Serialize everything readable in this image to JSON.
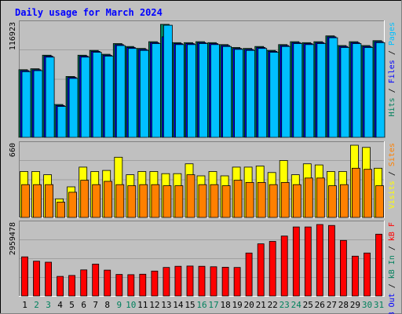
{
  "chart_data": {
    "type": "bar",
    "title": "Daily usage for March 2024",
    "categories": [
      "1",
      "2",
      "3",
      "4",
      "5",
      "6",
      "7",
      "8",
      "9",
      "10",
      "11",
      "12",
      "13",
      "14",
      "15",
      "16",
      "17",
      "18",
      "19",
      "20",
      "21",
      "22",
      "23",
      "24",
      "25",
      "26",
      "27",
      "28",
      "29",
      "30",
      "31"
    ],
    "weekend_days": [
      2,
      3,
      9,
      10,
      16,
      17,
      23,
      24,
      30,
      31
    ],
    "colors": {
      "title": "#0000ff",
      "hits": "#00805c",
      "files": "#0000ff",
      "pages": "#00c0ff",
      "visits": "#ffff00",
      "sites": "#ff8000",
      "kbin": "#00805c",
      "kbout": "#0000ff",
      "kbf": "#ff0000",
      "weekday_label": "#000000",
      "weekend_label": "#00805c"
    },
    "panels": [
      {
        "name": "hits-files-pages",
        "max_label": "116923",
        "ymax": 116923,
        "legend": [
          {
            "text": "Pages",
            "color": "#00c0ff"
          },
          {
            "text": " / ",
            "color": "#000000"
          },
          {
            "text": "Files",
            "color": "#0000ff"
          },
          {
            "text": " / ",
            "color": "#000000"
          },
          {
            "text": "Hits",
            "color": "#00805c"
          }
        ],
        "series": [
          {
            "name": "Hits",
            "color": "#00805c",
            "values": [
              70000,
              71000,
              85000,
              34000,
              63000,
              85000,
              90000,
              86000,
              97000,
              94000,
              92000,
              99000,
              116923,
              98000,
              98000,
              99000,
              98000,
              96000,
              93000,
              92000,
              94000,
              90000,
              96000,
              99000,
              98000,
              99000,
              105000,
              95000,
              99000,
              95000,
              100000
            ]
          },
          {
            "name": "Files",
            "color": "#0000ff",
            "values": [
              69000,
              70000,
              84000,
              33000,
              62000,
              84000,
              89000,
              85000,
              96000,
              93000,
              91000,
              98000,
              104000,
              97000,
              97000,
              98000,
              97000,
              95000,
              92000,
              91000,
              93000,
              89000,
              95000,
              98000,
              97000,
              98000,
              104000,
              94000,
              98000,
              94000,
              99000
            ]
          },
          {
            "name": "Pages",
            "color": "#00c0ff",
            "values": [
              68000,
              69000,
              83000,
              32000,
              61000,
              83000,
              88000,
              84000,
              95000,
              92000,
              90000,
              97000,
              116000,
              96000,
              96000,
              97000,
              96000,
              94000,
              91000,
              90000,
              92000,
              88000,
              94000,
              97000,
              96000,
              97000,
              103000,
              93000,
              97000,
              93000,
              98000
            ]
          }
        ]
      },
      {
        "name": "visits-sites",
        "max_label": "660",
        "ymax": 660,
        "legend": [
          {
            "text": "Sites",
            "color": "#ff8000"
          },
          {
            "text": " / ",
            "color": "#000000"
          },
          {
            "text": "Visits",
            "color": "#ffff00"
          }
        ],
        "series": [
          {
            "name": "Visits",
            "color": "#ffff00",
            "values": [
              420,
              420,
              390,
              170,
              280,
              460,
              420,
              430,
              550,
              390,
              420,
              420,
              400,
              400,
              490,
              380,
              420,
              380,
              460,
              460,
              470,
              410,
              520,
              390,
              490,
              480,
              420,
              420,
              660,
              640,
              450
            ]
          },
          {
            "name": "Sites",
            "color": "#ff8000",
            "values": [
              300,
              300,
              300,
              140,
              230,
              340,
              300,
              330,
              300,
              290,
              300,
              300,
              290,
              290,
              390,
              300,
              300,
              290,
              340,
              320,
              320,
              300,
              320,
              300,
              360,
              360,
              290,
              300,
              450,
              440,
              290
            ]
          }
        ]
      },
      {
        "name": "kbytes",
        "max_label": "2959478",
        "ymax": 2959478,
        "legend": [
          {
            "text": "kB F",
            "color": "#ff0000"
          },
          {
            "text": " / ",
            "color": "#000000"
          },
          {
            "text": "kB In",
            "color": "#00805c"
          },
          {
            "text": " / ",
            "color": "#000000"
          },
          {
            "text": "kB Out",
            "color": "#0000ff"
          }
        ],
        "series": [
          {
            "name": "kB F",
            "color": "#ff0000",
            "values": [
              1620000,
              1440000,
              1400000,
              810000,
              850000,
              1080000,
              1320000,
              1070000,
              890000,
              880000,
              900000,
              1030000,
              1180000,
              1230000,
              1240000,
              1230000,
              1210000,
              1190000,
              1180000,
              1780000,
              2160000,
              2260000,
              2480000,
              2860000,
              2860000,
              2959478,
              2920000,
              2300000,
              1650000,
              1780000,
              2560000
            ]
          }
        ]
      }
    ]
  }
}
